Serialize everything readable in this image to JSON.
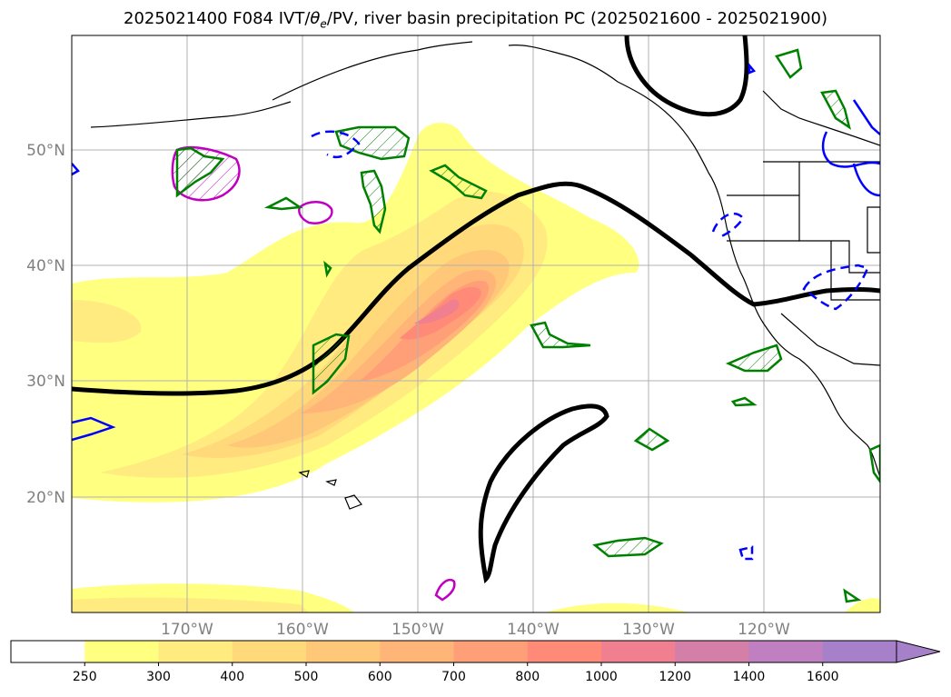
{
  "title": {
    "run": "2025021400",
    "forecast": "F084",
    "fields_prefix": "IVT/",
    "theta_symbol": "θ",
    "theta_sub": "e",
    "fields_suffix": "/PV, river basin precipitation PC (2025021600 - 2025021900)"
  },
  "latitude_labels": [
    "50°N",
    "40°N",
    "30°N",
    "20°N"
  ],
  "longitude_labels": [
    "170°W",
    "160°W",
    "150°W",
    "140°W",
    "130°W",
    "120°W"
  ],
  "colorbar": {
    "levels": [
      "250",
      "300",
      "400",
      "500",
      "600",
      "700",
      "800",
      "1000",
      "1200",
      "1400",
      "1600"
    ],
    "colors": [
      "#ffffff",
      "#ffff80",
      "#ffeb80",
      "#ffd97a",
      "#ffc878",
      "#ffb478",
      "#ff9f78",
      "#ff8a78",
      "#f07f90",
      "#d47fa8",
      "#bf7fc0",
      "#a680c8"
    ],
    "extend": "max"
  },
  "contour_colors": {
    "pv_line": "#000000",
    "precip_positive": "#008000",
    "precip_negative": "#0000ff",
    "precip_strong": "#c000c0"
  }
}
